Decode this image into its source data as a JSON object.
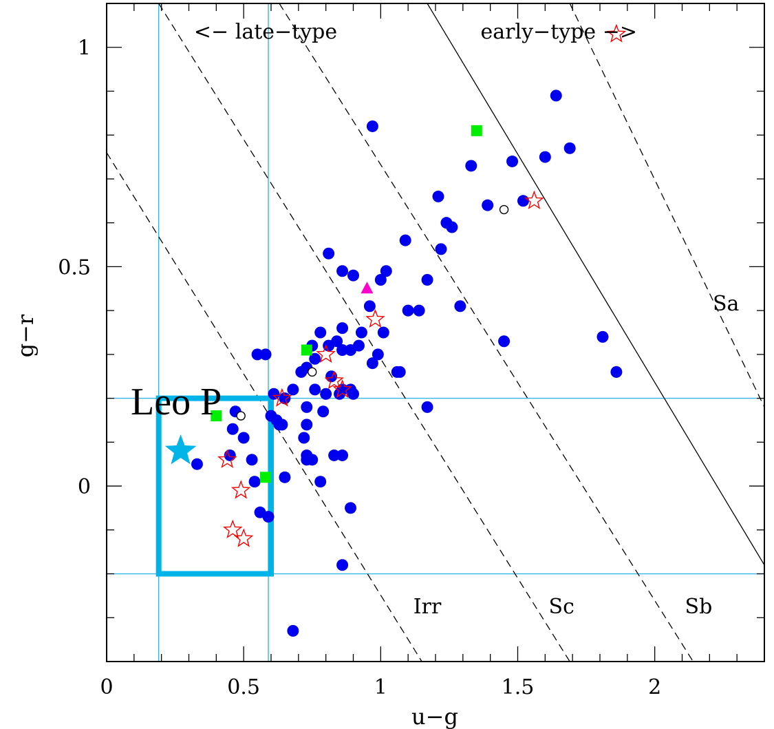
{
  "chart_data": {
    "type": "scatter",
    "xlabel": "u−g",
    "ylabel": "g−r",
    "xlim": [
      0,
      2.4
    ],
    "ylim": [
      -0.4,
      1.1
    ],
    "x_ticks": [
      0,
      0.5,
      1,
      1.5,
      2
    ],
    "x_tick_labels": [
      "0",
      "0.5",
      "1",
      "1.5",
      "2"
    ],
    "y_ticks": [
      0,
      0.5,
      1
    ],
    "y_tick_labels": [
      "0",
      "0.5",
      "1"
    ],
    "x_minor_step": 0.1,
    "y_minor_step": 0.1,
    "grid": false,
    "colors": {
      "blue_points": "#0000ee",
      "green_squares": "#00ee00",
      "red_stars": "#ff0000",
      "magenta_triangle": "#ff00cc",
      "highlight": "#00b4e8",
      "cyan_lines": "#33b5e5"
    },
    "series": [
      {
        "marker": "filled-circle",
        "color": "#0000ee",
        "points": [
          [
            1.64,
            0.89
          ],
          [
            0.97,
            0.82
          ],
          [
            1.33,
            0.73
          ],
          [
            1.48,
            0.74
          ],
          [
            1.6,
            0.75
          ],
          [
            1.69,
            0.77
          ],
          [
            1.52,
            0.65
          ],
          [
            1.39,
            0.64
          ],
          [
            1.21,
            0.66
          ],
          [
            1.24,
            0.6
          ],
          [
            1.26,
            0.59
          ],
          [
            1.09,
            0.56
          ],
          [
            1.22,
            0.54
          ],
          [
            0.81,
            0.53
          ],
          [
            0.86,
            0.49
          ],
          [
            0.9,
            0.48
          ],
          [
            1.02,
            0.49
          ],
          [
            1.0,
            0.47
          ],
          [
            1.17,
            0.47
          ],
          [
            0.96,
            0.41
          ],
          [
            1.1,
            0.4
          ],
          [
            1.14,
            0.4
          ],
          [
            1.29,
            0.41
          ],
          [
            1.45,
            0.33
          ],
          [
            1.81,
            0.34
          ],
          [
            1.86,
            0.26
          ],
          [
            0.86,
            0.36
          ],
          [
            0.93,
            0.35
          ],
          [
            1.01,
            0.35
          ],
          [
            0.78,
            0.35
          ],
          [
            0.75,
            0.32
          ],
          [
            0.84,
            0.33
          ],
          [
            0.81,
            0.32
          ],
          [
            0.86,
            0.31
          ],
          [
            0.89,
            0.31
          ],
          [
            0.92,
            0.32
          ],
          [
            0.76,
            0.29
          ],
          [
            0.73,
            0.27
          ],
          [
            0.71,
            0.26
          ],
          [
            0.55,
            0.3
          ],
          [
            0.58,
            0.3
          ],
          [
            0.97,
            0.28
          ],
          [
            0.99,
            0.3
          ],
          [
            1.06,
            0.26
          ],
          [
            1.07,
            0.26
          ],
          [
            0.82,
            0.25
          ],
          [
            0.8,
            0.21
          ],
          [
            0.86,
            0.22
          ],
          [
            0.85,
            0.21
          ],
          [
            0.89,
            0.22
          ],
          [
            0.9,
            0.21
          ],
          [
            0.76,
            0.22
          ],
          [
            0.68,
            0.22
          ],
          [
            0.61,
            0.21
          ],
          [
            0.65,
            0.2
          ],
          [
            0.73,
            0.18
          ],
          [
            0.79,
            0.17
          ],
          [
            0.47,
            0.17
          ],
          [
            0.6,
            0.16
          ],
          [
            0.62,
            0.15
          ],
          [
            0.64,
            0.14
          ],
          [
            0.63,
            0.14
          ],
          [
            0.73,
            0.14
          ],
          [
            0.46,
            0.13
          ],
          [
            1.17,
            0.18
          ],
          [
            0.72,
            0.11
          ],
          [
            0.5,
            0.11
          ],
          [
            0.73,
            0.06
          ],
          [
            0.75,
            0.06
          ],
          [
            0.73,
            0.07
          ],
          [
            0.83,
            0.07
          ],
          [
            0.86,
            0.07
          ],
          [
            0.45,
            0.07
          ],
          [
            0.53,
            0.06
          ],
          [
            0.33,
            0.05
          ],
          [
            0.65,
            0.02
          ],
          [
            0.78,
            0.01
          ],
          [
            0.54,
            0.01
          ],
          [
            0.89,
            -0.05
          ],
          [
            0.56,
            -0.06
          ],
          [
            0.59,
            -0.07
          ],
          [
            0.86,
            -0.18
          ],
          [
            0.68,
            -0.33
          ]
        ]
      },
      {
        "marker": "open-circle",
        "color": "#000000",
        "points": [
          [
            1.45,
            0.63
          ],
          [
            0.75,
            0.26
          ],
          [
            0.49,
            0.16
          ]
        ]
      },
      {
        "marker": "filled-square",
        "color": "#00ee00",
        "points": [
          [
            1.35,
            0.81
          ],
          [
            0.73,
            0.31
          ],
          [
            0.4,
            0.16
          ],
          [
            0.58,
            0.02
          ]
        ]
      },
      {
        "marker": "open-star",
        "color": "#ff0000",
        "points": [
          [
            1.86,
            1.03
          ],
          [
            1.56,
            0.65
          ],
          [
            0.98,
            0.38
          ],
          [
            0.8,
            0.3
          ],
          [
            0.83,
            0.24
          ],
          [
            0.86,
            0.22
          ],
          [
            0.64,
            0.2
          ],
          [
            0.44,
            0.06
          ],
          [
            0.49,
            -0.01
          ],
          [
            0.46,
            -0.1
          ],
          [
            0.5,
            -0.12
          ]
        ]
      },
      {
        "marker": "filled-triangle",
        "color": "#ff00cc",
        "points": [
          [
            0.95,
            0.45
          ]
        ]
      }
    ],
    "highlight_point": {
      "label": "Leo P",
      "x": 0.27,
      "y": 0.08,
      "marker": "filled-star",
      "color": "#00b4e8"
    },
    "highlight_box": {
      "x": [
        0.19,
        0.6
      ],
      "y": [
        -0.2,
        0.2
      ],
      "color": "#00b4e8"
    },
    "reference_lines": {
      "vertical_x": [
        0.19,
        0.59
      ],
      "horizontal_y": [
        0.2,
        -0.2
      ],
      "color": "#33b5e5"
    },
    "diagonal_lines": [
      {
        "style": "dashed",
        "label": "Irr",
        "x_at_y_top": 0.0,
        "y_top": 0.76,
        "x_at_y_bottom": 1.15,
        "y_bottom": -0.4
      },
      {
        "style": "dashed",
        "label": "Sc",
        "x_at_y_top": 0.19,
        "y_top": 1.1,
        "x_at_y_bottom": 1.69,
        "y_bottom": -0.4
      },
      {
        "style": "dashed",
        "label": "Sb",
        "x_at_y_top": 0.63,
        "y_top": 1.1,
        "x_at_y_bottom": 2.14,
        "y_bottom": -0.4
      },
      {
        "style": "solid",
        "label": "",
        "x_at_y_top": 1.17,
        "y_top": 1.1,
        "x_at_y_bottom": 2.4,
        "y_bottom": -0.18
      },
      {
        "style": "dashed",
        "label": "Sa",
        "x_at_y_top": 1.69,
        "y_top": 1.1,
        "x_at_y_bottom": 2.4,
        "y_bottom": 0.18
      }
    ],
    "annotations": [
      {
        "text": "Irr",
        "x": 1.17,
        "y": -0.29
      },
      {
        "text": "Sc",
        "x": 1.66,
        "y": -0.29
      },
      {
        "text": "Sb",
        "x": 2.16,
        "y": -0.29
      },
      {
        "text": "Sa",
        "x": 2.26,
        "y": 0.4
      },
      {
        "text": "<− late−type",
        "x": 0.58,
        "y": 1.02
      },
      {
        "text": "early−type −>",
        "x": 1.65,
        "y": 1.02
      }
    ]
  }
}
